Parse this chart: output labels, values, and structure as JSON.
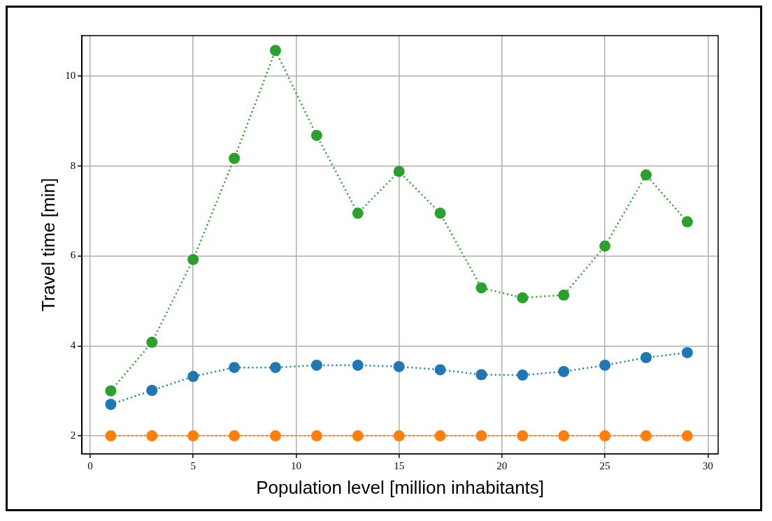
{
  "chart_data": {
    "type": "line",
    "xlabel": "Population level [million inhabitants]",
    "ylabel": "Travel time [min]",
    "x": [
      1,
      3,
      5,
      7,
      9,
      11,
      13,
      15,
      17,
      19,
      21,
      23,
      25,
      27,
      29
    ],
    "series": [
      {
        "color": "#2ca02c",
        "values": [
          3.0,
          4.08,
          5.92,
          8.17,
          10.57,
          8.68,
          6.95,
          7.88,
          6.95,
          5.29,
          5.07,
          5.13,
          6.22,
          7.8,
          6.76
        ]
      },
      {
        "color": "#1f77b4",
        "values": [
          2.7,
          3.01,
          3.32,
          3.52,
          3.52,
          3.57,
          3.57,
          3.54,
          3.47,
          3.36,
          3.35,
          3.43,
          3.57,
          3.74,
          3.85
        ]
      },
      {
        "color": "#ff7f0e",
        "values": [
          2,
          2,
          2,
          2,
          2,
          2,
          2,
          2,
          2,
          2,
          2,
          2,
          2,
          2,
          2
        ]
      }
    ],
    "xlim": [
      -0.4,
      30.5
    ],
    "ylim": [
      1.6,
      10.9
    ],
    "xticks": [
      0,
      5,
      10,
      15,
      20,
      25,
      30
    ],
    "yticks": [
      2,
      4,
      6,
      8,
      10
    ],
    "grid": true,
    "legend": false,
    "marker": "circle",
    "line_style": "dotted"
  }
}
